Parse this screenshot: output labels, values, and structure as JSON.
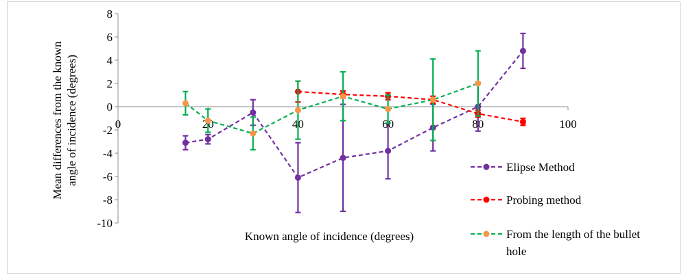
{
  "chart_data": {
    "type": "line",
    "title": "",
    "xlabel": "Known angle of incidence (degrees)",
    "ylabel_lines": [
      "Mean differences from the known",
      "angle of incidence (degrees)"
    ],
    "xlim": [
      0,
      100
    ],
    "ylim": [
      -10,
      8
    ],
    "x_ticks": [
      "0",
      "20",
      "40",
      "60",
      "80",
      "100"
    ],
    "y_ticks": [
      "8",
      "6",
      "4",
      "2",
      "0",
      "-2",
      "-4",
      "-6",
      "-8",
      "-10"
    ],
    "grid": false,
    "legend_position": "right",
    "series": [
      {
        "name": "Elipse Method",
        "color": "#7030a0",
        "marker": "circle",
        "line_style": "dashed",
        "x": [
          15,
          20,
          30,
          40,
          50,
          60,
          70,
          80,
          90
        ],
        "y": [
          -3.1,
          -2.8,
          -0.5,
          -6.1,
          -4.4,
          -3.8,
          -1.8,
          0.0,
          4.8
        ],
        "error": [
          0.6,
          0.4,
          1.1,
          3.0,
          4.6,
          2.4,
          2.0,
          2.1,
          1.5
        ]
      },
      {
        "name": "Probing method",
        "color": "#ff0000",
        "marker": "circle",
        "line_style": "dashed",
        "x": [
          40,
          50,
          60,
          70,
          80,
          90
        ],
        "y": [
          1.3,
          1.05,
          0.9,
          0.6,
          -0.6,
          -1.3
        ],
        "error": [
          0.9,
          0.3,
          0.3,
          0.3,
          0.3,
          0.3
        ]
      },
      {
        "name": "From the length of the bullet hole",
        "legend_lines": [
          "From the length of the bullet",
          "hole"
        ],
        "color": "#00b050",
        "marker_color": "#f79646",
        "marker": "circle",
        "line_style": "dashed",
        "x": [
          15,
          20,
          30,
          40,
          50,
          60,
          70,
          80
        ],
        "y": [
          0.3,
          -1.2,
          -2.3,
          -0.3,
          0.9,
          -0.2,
          0.6,
          2.0
        ],
        "error": [
          1.0,
          1.0,
          1.4,
          2.5,
          2.1,
          1.2,
          3.5,
          2.8
        ]
      }
    ]
  }
}
